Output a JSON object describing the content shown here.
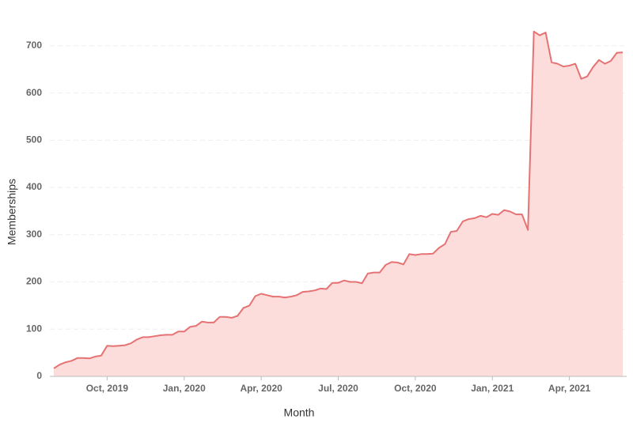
{
  "chart_data": {
    "type": "area",
    "y_label": "Memberships",
    "x_label": "Month",
    "categories": [
      null,
      null,
      null,
      null,
      null,
      null,
      null,
      null,
      null,
      "Oct, 2019",
      null,
      null,
      null,
      null,
      null,
      null,
      null,
      null,
      null,
      null,
      null,
      null,
      "Jan, 2020",
      null,
      null,
      null,
      null,
      null,
      null,
      null,
      null,
      null,
      null,
      null,
      null,
      "Apr, 2020",
      null,
      null,
      null,
      null,
      null,
      null,
      null,
      null,
      null,
      null,
      null,
      null,
      "Jul, 2020",
      null,
      null,
      null,
      null,
      null,
      null,
      null,
      null,
      null,
      null,
      null,
      null,
      "Oct, 2020",
      null,
      null,
      null,
      null,
      null,
      null,
      null,
      null,
      null,
      null,
      null,
      null,
      "Jan, 2021",
      null,
      null,
      null,
      null,
      null,
      null,
      null,
      null,
      null,
      null,
      null,
      null,
      "Apr, 2021",
      null,
      null,
      null,
      null,
      null,
      null,
      null,
      null,
      null
    ],
    "values": [
      17,
      25,
      30,
      33,
      39,
      39,
      38,
      42,
      44,
      65,
      64,
      65,
      66,
      70,
      78,
      83,
      83,
      85,
      87,
      88,
      88,
      95,
      95,
      105,
      107,
      116,
      114,
      114,
      126,
      126,
      124,
      128,
      145,
      150,
      170,
      175,
      172,
      169,
      169,
      167,
      169,
      172,
      179,
      180,
      182,
      186,
      185,
      198,
      198,
      203,
      200,
      200,
      197,
      218,
      220,
      220,
      236,
      242,
      241,
      237,
      259,
      257,
      259,
      259,
      260,
      272,
      280,
      306,
      308,
      328,
      333,
      335,
      340,
      337,
      344,
      342,
      352,
      349,
      343,
      343,
      310,
      730,
      722,
      728,
      665,
      662,
      656,
      658,
      662,
      630,
      635,
      655,
      670,
      662,
      668,
      685,
      686
    ],
    "color": "#e57373",
    "fill": "#fddcdc",
    "ylim": [
      0,
      750
    ],
    "yticks": [
      0,
      100,
      200,
      300,
      400,
      500,
      600,
      700
    ],
    "grid": true
  }
}
